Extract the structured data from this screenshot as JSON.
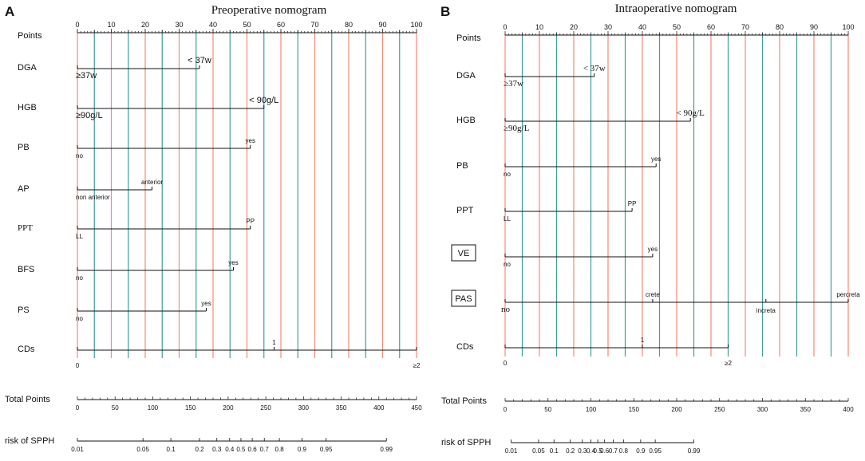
{
  "chart_data": [
    {
      "type": "nomogram",
      "panel_label": "A",
      "title": "Preoperative nomogram",
      "points_axis": {
        "label": "Points",
        "min": 0,
        "max": 100,
        "major_ticks": [
          0,
          10,
          20,
          30,
          40,
          50,
          60,
          70,
          80,
          90,
          100
        ]
      },
      "predictors": [
        {
          "name": "DGA",
          "levels": [
            {
              "label": "≥37w",
              "points": 0
            },
            {
              "label": "< 37w",
              "points": 36
            }
          ]
        },
        {
          "name": "HGB",
          "levels": [
            {
              "label": "≥90g/L",
              "points": 0
            },
            {
              "label": "< 90g/L",
              "points": 55
            }
          ]
        },
        {
          "name": "PB",
          "levels": [
            {
              "label": "no",
              "points": 0
            },
            {
              "label": "yes",
              "points": 51
            }
          ]
        },
        {
          "name": "AP",
          "levels": [
            {
              "label": "non anterior",
              "points": 0
            },
            {
              "label": "anterior",
              "points": 22
            }
          ]
        },
        {
          "name": "PPT",
          "levels": [
            {
              "label": "LL",
              "points": 0
            },
            {
              "label": "PP",
              "points": 51
            }
          ]
        },
        {
          "name": "BFS",
          "levels": [
            {
              "label": "no",
              "points": 0
            },
            {
              "label": "yes",
              "points": 46
            }
          ]
        },
        {
          "name": "PS",
          "levels": [
            {
              "label": "no",
              "points": 0
            },
            {
              "label": "yes",
              "points": 38
            }
          ]
        },
        {
          "name": "CDs",
          "levels": [
            {
              "label": "0",
              "points": 0
            },
            {
              "label": "1",
              "points": 58
            },
            {
              "label": "≥2",
              "points": 100
            }
          ]
        }
      ],
      "total_points": {
        "label": "Total Points",
        "min": 0,
        "max": 450,
        "ticks": [
          0,
          50,
          100,
          150,
          200,
          250,
          300,
          350,
          400,
          450
        ]
      },
      "risk": {
        "label": "risk of SPPH",
        "ticks": [
          {
            "label": "0.01",
            "points": 0
          },
          {
            "label": "0.05",
            "points": 87
          },
          {
            "label": "0.1",
            "points": 124
          },
          {
            "label": "0.2",
            "points": 162
          },
          {
            "label": "0.3",
            "points": 185
          },
          {
            "label": "0.4",
            "points": 202
          },
          {
            "label": "0.5",
            "points": 217
          },
          {
            "label": "0.6",
            "points": 232
          },
          {
            "label": "0.7",
            "points": 248
          },
          {
            "label": "0.8",
            "points": 268
          },
          {
            "label": "0.9",
            "points": 298
          },
          {
            "label": "0.95",
            "points": 330
          },
          {
            "label": "0.99",
            "points": 410
          }
        ]
      }
    },
    {
      "type": "nomogram",
      "panel_label": "B",
      "title": "Intraoperative nomogram",
      "points_axis": {
        "label": "Points",
        "min": 0,
        "max": 100,
        "major_ticks": [
          0,
          10,
          20,
          30,
          40,
          50,
          60,
          70,
          80,
          90,
          100
        ]
      },
      "predictors": [
        {
          "name": "DGA",
          "levels": [
            {
              "label": "≥37w",
              "points": 0
            },
            {
              "label": "< 37w",
              "points": 26
            }
          ]
        },
        {
          "name": "HGB",
          "levels": [
            {
              "label": "≥90g/L",
              "points": 0
            },
            {
              "label": "< 90g/L",
              "points": 54
            }
          ]
        },
        {
          "name": "PB",
          "levels": [
            {
              "label": "no",
              "points": 0
            },
            {
              "label": "yes",
              "points": 44
            }
          ]
        },
        {
          "name": "PPT",
          "levels": [
            {
              "label": "LL",
              "points": 0
            },
            {
              "label": "PP",
              "points": 37
            }
          ]
        },
        {
          "name": "VE",
          "boxed": true,
          "levels": [
            {
              "label": "no",
              "points": 0
            },
            {
              "label": "yes",
              "points": 43
            }
          ]
        },
        {
          "name": "PAS",
          "boxed": true,
          "levels": [
            {
              "label": "no",
              "points": 0
            },
            {
              "label": "crete",
              "points": 43
            },
            {
              "label": "increta",
              "points": 76
            },
            {
              "label": "percreta",
              "points": 100
            }
          ]
        },
        {
          "name": "CDs",
          "levels": [
            {
              "label": "0",
              "points": 0
            },
            {
              "label": "1",
              "points": 40
            },
            {
              "label": "≥2",
              "points": 65
            }
          ]
        }
      ],
      "total_points": {
        "label": "Total Points",
        "min": 0,
        "max": 400,
        "ticks": [
          0,
          50,
          100,
          150,
          200,
          250,
          300,
          350,
          400
        ]
      },
      "risk": {
        "label": "risk of SPPH",
        "ticks": [
          {
            "label": "0.01",
            "points": 7
          },
          {
            "label": "0.05",
            "points": 39
          },
          {
            "label": "0.1",
            "points": 57
          },
          {
            "label": "0.2",
            "points": 76
          },
          {
            "label": "0.3",
            "points": 90
          },
          {
            "label": "0.4",
            "points": 100
          },
          {
            "label": "0.5",
            "points": 108
          },
          {
            "label": "0.6",
            "points": 116
          },
          {
            "label": "0.7",
            "points": 126
          },
          {
            "label": "0.8",
            "points": 138
          },
          {
            "label": "0.9",
            "points": 158
          },
          {
            "label": "0.95",
            "points": 175
          },
          {
            "label": "0.99",
            "points": 220
          }
        ]
      }
    }
  ]
}
